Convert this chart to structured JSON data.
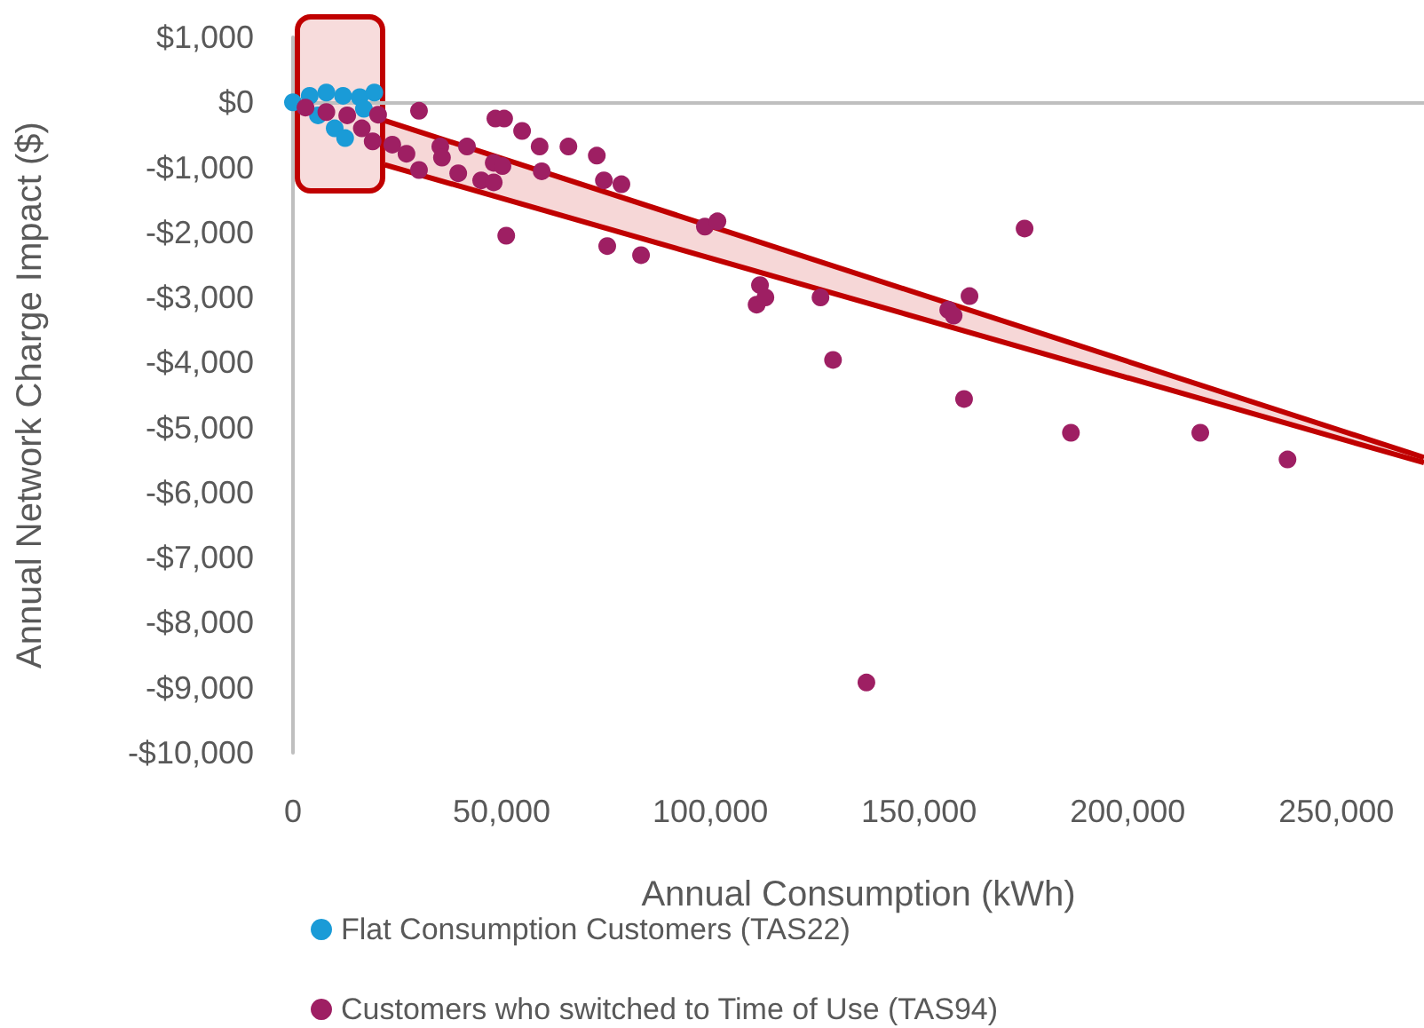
{
  "chart_data": {
    "type": "scatter",
    "xlabel": "Annual Consumption (kWh)",
    "ylabel": "Annual Network Charge Impact ($)",
    "xlim": [
      0,
      271000
    ],
    "ylim": [
      -10000,
      1000
    ],
    "xticks": [
      {
        "value": 0,
        "label": "0"
      },
      {
        "value": 50000,
        "label": "50,000"
      },
      {
        "value": 100000,
        "label": "100,000"
      },
      {
        "value": 150000,
        "label": "150,000"
      },
      {
        "value": 200000,
        "label": "200,000"
      },
      {
        "value": 250000,
        "label": "250,000"
      }
    ],
    "yticks": [
      {
        "value": 1000,
        "label": "$1,000"
      },
      {
        "value": 0,
        "label": "$0"
      },
      {
        "value": -1000,
        "label": "-$1,000"
      },
      {
        "value": -2000,
        "label": "-$2,000"
      },
      {
        "value": -3000,
        "label": "-$3,000"
      },
      {
        "value": -4000,
        "label": "-$4,000"
      },
      {
        "value": -5000,
        "label": "-$5,000"
      },
      {
        "value": -6000,
        "label": "-$6,000"
      },
      {
        "value": -7000,
        "label": "-$7,000"
      },
      {
        "value": -8000,
        "label": "-$8,000"
      },
      {
        "value": -9000,
        "label": "-$9,000"
      },
      {
        "value": -10000,
        "label": "-$10,000"
      }
    ],
    "legend": "bottom",
    "marker": "circle",
    "series": [
      {
        "name": "Flat Consumption Customers (TAS22)",
        "color": "#1a9bd7",
        "x": [
          0,
          4000,
          8000,
          12000,
          16000,
          19500,
          6000,
          10000,
          17000,
          12500
        ],
        "values": [
          0,
          100,
          150,
          100,
          80,
          150,
          -200,
          -400,
          -100,
          -550
        ]
      },
      {
        "name": "Customers who switched to Time of Use (TAS94)",
        "color": "#9e1f63",
        "x": [
          3000,
          8000,
          13000,
          16500,
          19100,
          20400,
          30200,
          23800,
          27200,
          30200,
          35300,
          35700,
          39600,
          41700,
          45100,
          48100,
          48100,
          50200,
          48500,
          50600,
          51100,
          54900,
          59100,
          59600,
          66000,
          72800,
          74500,
          78700,
          75300,
          83400,
          98700,
          101700,
          111900,
          111100,
          113200,
          126400,
          129400,
          175300,
          162100,
          157000,
          158300,
          160800,
          186400,
          217400,
          238300,
          137400
        ],
        "values": [
          -80,
          -150,
          -200,
          -400,
          -600,
          -190,
          -130,
          -650,
          -790,
          -1040,
          -680,
          -850,
          -1090,
          -680,
          -1200,
          -1230,
          -930,
          -980,
          -250,
          -250,
          -2050,
          -440,
          -680,
          -1060,
          -680,
          -820,
          -1200,
          -1260,
          -2210,
          -2350,
          -1910,
          -1830,
          -2810,
          -3110,
          -3000,
          -3000,
          -3960,
          -1940,
          -2980,
          -3190,
          -3280,
          -4560,
          -5080,
          -5080,
          -5490,
          -8920
        ]
      },
      {
        "type": "line",
        "marker": "none",
        "color": "#c00000",
        "x": [
          22000,
          271000
        ],
        "values": [
          -280,
          -5460
        ]
      },
      {
        "type": "line",
        "marker": "none",
        "color": "#c00000",
        "x": [
          22000,
          271000
        ],
        "values": [
          -960,
          -5540
        ],
        "lower": [
          -960,
          -5540
        ],
        "upper": [
          -280,
          -5460
        ]
      }
    ]
  }
}
